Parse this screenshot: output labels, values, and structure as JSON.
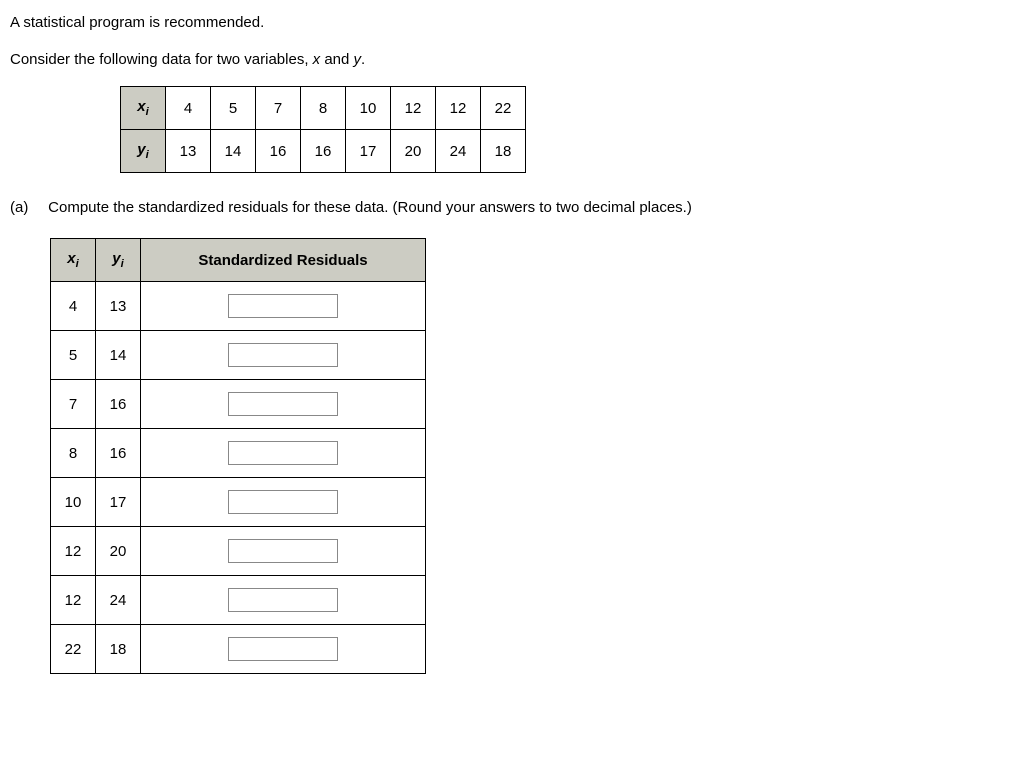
{
  "intro": {
    "line1": "A statistical program is recommended.",
    "line2_before": "Consider the following data for two variables, ",
    "var_x": "x",
    "line2_mid": " and ",
    "var_y": "y",
    "line2_after": "."
  },
  "data_table": {
    "row_labels": {
      "x": "x",
      "y": "y",
      "sub": "i"
    },
    "x_values": [
      "4",
      "5",
      "7",
      "8",
      "10",
      "12",
      "12",
      "22"
    ],
    "y_values": [
      "13",
      "14",
      "16",
      "16",
      "17",
      "20",
      "24",
      "18"
    ],
    "header_bg": "#ccccc3",
    "border_color": "#000000"
  },
  "part_a": {
    "label": "(a)",
    "text": "Compute the standardized residuals for these data. (Round your answers to two decimal places.)"
  },
  "res_table": {
    "headers": {
      "x": "x",
      "y": "y",
      "sub": "i",
      "res": "Standardized Residuals"
    },
    "rows": [
      {
        "x": "4",
        "y": "13"
      },
      {
        "x": "5",
        "y": "14"
      },
      {
        "x": "7",
        "y": "16"
      },
      {
        "x": "8",
        "y": "16"
      },
      {
        "x": "10",
        "y": "17"
      },
      {
        "x": "12",
        "y": "20"
      },
      {
        "x": "12",
        "y": "24"
      },
      {
        "x": "22",
        "y": "18"
      }
    ],
    "header_bg": "#ccccc3",
    "input_border": "#888888"
  }
}
